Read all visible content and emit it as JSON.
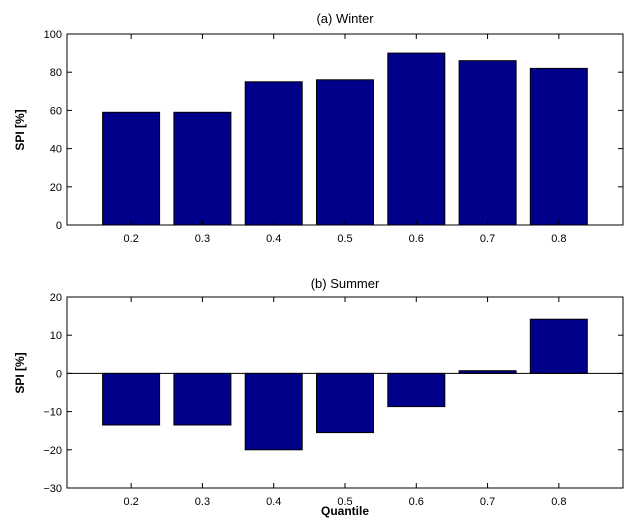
{
  "chart_data": [
    {
      "type": "bar",
      "title": "(a) Winter",
      "xlabel": "",
      "ylabel": "SPI [%]",
      "categories": [
        "0.2",
        "0.3",
        "0.4",
        "0.5",
        "0.6",
        "0.7",
        "0.8"
      ],
      "values": [
        59,
        59,
        75,
        76,
        90,
        86,
        82
      ],
      "ylim": [
        0,
        100
      ],
      "yticks": [
        0,
        20,
        40,
        60,
        80,
        100
      ],
      "grid": false,
      "bar_color": "#00008b"
    },
    {
      "type": "bar",
      "title": "(b) Summer",
      "xlabel": "Quantile",
      "ylabel": "SPI [%]",
      "categories": [
        "0.2",
        "0.3",
        "0.4",
        "0.5",
        "0.6",
        "0.7",
        "0.8"
      ],
      "values": [
        -13.5,
        -13.5,
        -20,
        -15.5,
        -8.7,
        0.7,
        14.2
      ],
      "ylim": [
        -30,
        20
      ],
      "yticks": [
        -30,
        -20,
        -10,
        0,
        10,
        20
      ],
      "grid": false,
      "bar_color": "#00008b"
    }
  ]
}
